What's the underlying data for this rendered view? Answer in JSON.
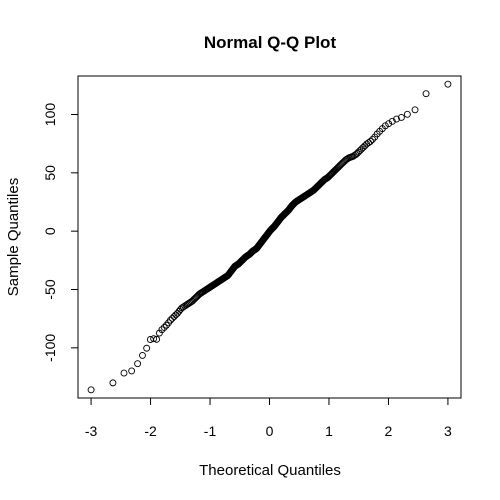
{
  "chart_data": {
    "type": "scatter",
    "title": "Normal Q-Q Plot",
    "xlabel": "Theoretical Quantiles",
    "ylabel": "Sample Quantiles",
    "xlim": [
      -3.22,
      3.22
    ],
    "ylim": [
      -143,
      133
    ],
    "x_ticks": [
      -3,
      -2,
      -1,
      0,
      1,
      2,
      3
    ],
    "y_ticks": [
      -100,
      -50,
      0,
      50,
      100
    ],
    "grid": false,
    "n_points": 300,
    "series": [
      {
        "x_quantile_range": [
          -3.0,
          3.0
        ],
        "points": [
          [
            -3.0,
            -136
          ],
          [
            -2.67,
            -132
          ],
          [
            -2.48,
            -122
          ],
          [
            -2.38,
            -121
          ],
          [
            -2.28,
            -119
          ],
          [
            -2.2,
            -112
          ],
          [
            -2.13,
            -106
          ],
          [
            -2.07,
            -101
          ],
          [
            -2.01,
            -93
          ],
          [
            -1.96,
            -92
          ],
          [
            -1.9,
            -93
          ],
          [
            -1.84,
            -86
          ],
          [
            -1.78,
            -83
          ],
          [
            -1.72,
            -80
          ],
          [
            -1.66,
            -76
          ],
          [
            -1.6,
            -73
          ],
          [
            -1.54,
            -70
          ],
          [
            -1.48,
            -66
          ],
          [
            -1.42,
            -64
          ],
          [
            -1.36,
            -62
          ],
          [
            -1.3,
            -60
          ],
          [
            -1.24,
            -57
          ],
          [
            -1.18,
            -54
          ],
          [
            -1.12,
            -52
          ],
          [
            -1.06,
            -50
          ],
          [
            -1.0,
            -48
          ],
          [
            -0.94,
            -46
          ],
          [
            -0.88,
            -44
          ],
          [
            -0.82,
            -42
          ],
          [
            -0.76,
            -40
          ],
          [
            -0.7,
            -38
          ],
          [
            -0.64,
            -34
          ],
          [
            -0.58,
            -30
          ],
          [
            -0.52,
            -28
          ],
          [
            -0.46,
            -25
          ],
          [
            -0.4,
            -22
          ],
          [
            -0.34,
            -20
          ],
          [
            -0.28,
            -17
          ],
          [
            -0.22,
            -15
          ],
          [
            -0.16,
            -11
          ],
          [
            -0.1,
            -7
          ],
          [
            -0.04,
            -3
          ],
          [
            0.02,
            1
          ],
          [
            0.08,
            4
          ],
          [
            0.14,
            8
          ],
          [
            0.2,
            12
          ],
          [
            0.26,
            15
          ],
          [
            0.32,
            18
          ],
          [
            0.38,
            22
          ],
          [
            0.44,
            25
          ],
          [
            0.5,
            27
          ],
          [
            0.56,
            29
          ],
          [
            0.62,
            31
          ],
          [
            0.68,
            33
          ],
          [
            0.74,
            35
          ],
          [
            0.8,
            38
          ],
          [
            0.86,
            41
          ],
          [
            0.92,
            44
          ],
          [
            0.98,
            46
          ],
          [
            1.04,
            49
          ],
          [
            1.1,
            52
          ],
          [
            1.16,
            55
          ],
          [
            1.22,
            58
          ],
          [
            1.28,
            61
          ],
          [
            1.34,
            63
          ],
          [
            1.4,
            64
          ],
          [
            1.46,
            66
          ],
          [
            1.52,
            69
          ],
          [
            1.58,
            72
          ],
          [
            1.64,
            75
          ],
          [
            1.7,
            77
          ],
          [
            1.76,
            80
          ],
          [
            1.82,
            84
          ],
          [
            1.88,
            87
          ],
          [
            1.94,
            90
          ],
          [
            2.0,
            92
          ],
          [
            2.06,
            94
          ],
          [
            2.13,
            96
          ],
          [
            2.2,
            97
          ],
          [
            2.28,
            99
          ],
          [
            2.38,
            102
          ],
          [
            2.48,
            105
          ],
          [
            2.67,
            121
          ],
          [
            3.0,
            126
          ]
        ]
      }
    ]
  }
}
